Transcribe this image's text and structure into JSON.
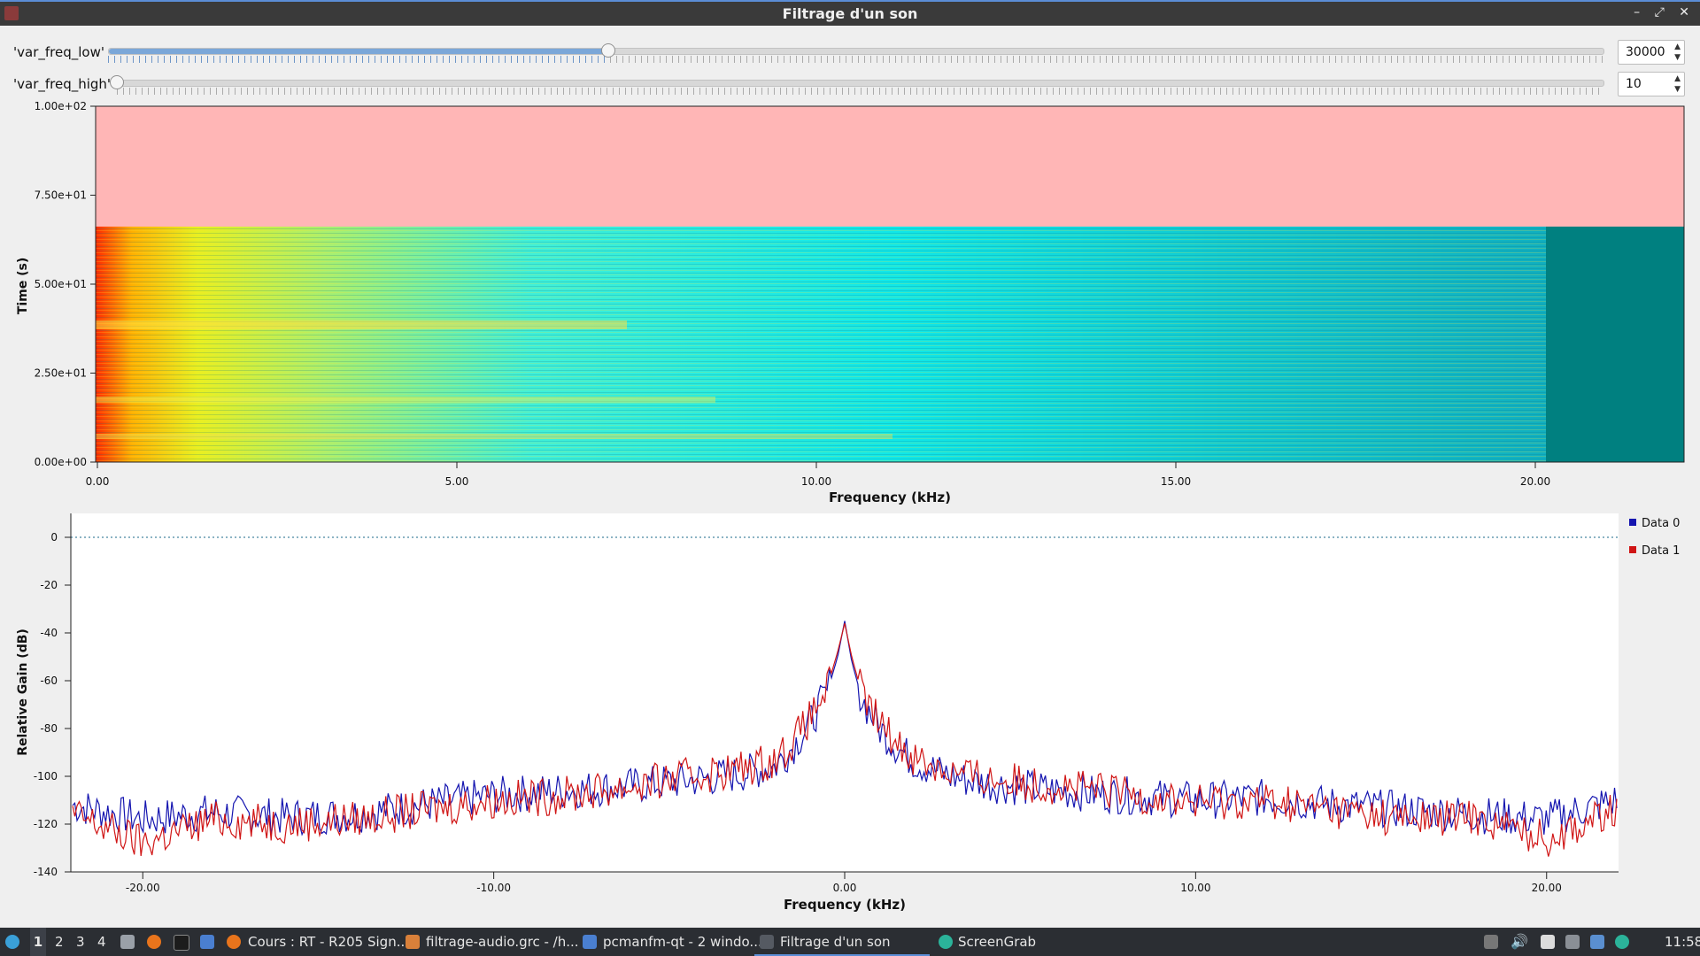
{
  "window": {
    "title": "Filtrage d'un son",
    "controls": [
      "–",
      "⤢",
      "✕"
    ]
  },
  "controls": {
    "low": {
      "label": "'var_freq_low'",
      "value": "30000",
      "fraction": 0.335
    },
    "high": {
      "label": "'var_freq_high'",
      "value": "10",
      "fraction": 0.0
    }
  },
  "colors": {
    "accent": "#5b8dd6",
    "series0": "#1515b0",
    "series1": "#d01515",
    "waterfall_empty": "#ffb6b6",
    "waterfall_floor": "#008080"
  },
  "waterfall": {
    "ylabel": "Time (s)",
    "xlabel": "Frequency (kHz)",
    "yticks": [
      "1.00e+02",
      "7.50e+01",
      "5.00e+01",
      "2.50e+01",
      "0.00e+00"
    ],
    "xticks": [
      "0.00",
      "5.00",
      "10.00",
      "15.00",
      "20.00"
    ]
  },
  "chart_data": {
    "type": "line",
    "xlabel": "Frequency (kHz)",
    "ylabel": "Relative Gain (dB)",
    "xlim": [
      -22.05,
      22.05
    ],
    "ylim": [
      -140,
      10
    ],
    "x_ticks": [
      "-20.00",
      "-10.00",
      "0.00",
      "10.00",
      "20.00"
    ],
    "y_ticks": [
      "0",
      "-20",
      "-40",
      "-60",
      "-80",
      "-100",
      "-120",
      "-140"
    ],
    "reference_line_db": 0,
    "legend_position": "right",
    "series": [
      {
        "name": "Data 0",
        "x": [
          -22,
          -20,
          -18,
          -16,
          -14,
          -12,
          -10,
          -8,
          -6,
          -4,
          -3,
          -2,
          -1.5,
          -1,
          -0.5,
          -0.2,
          0,
          0.2,
          0.5,
          1,
          1.5,
          2,
          3,
          4,
          6,
          8,
          10,
          12,
          14,
          16,
          18,
          20,
          22
        ],
        "y": [
          -112,
          -118,
          -115,
          -117,
          -116,
          -112,
          -108,
          -106,
          -104,
          -101,
          -99,
          -96,
          -88,
          -78,
          -65,
          -50,
          -35,
          -52,
          -68,
          -80,
          -88,
          -94,
          -100,
          -103,
          -106,
          -108,
          -110,
          -109,
          -112,
          -114,
          -116,
          -118,
          -110
        ]
      },
      {
        "name": "Data 1",
        "x": [
          -22,
          -20,
          -18,
          -16,
          -14,
          -12,
          -10,
          -8,
          -6,
          -4,
          -3,
          -2,
          -1.5,
          -1,
          -0.5,
          -0.2,
          0,
          0.2,
          0.5,
          1,
          1.5,
          2,
          3,
          4,
          6,
          8,
          10,
          12,
          14,
          16,
          18,
          20,
          22
        ],
        "y": [
          -116,
          -128,
          -118,
          -120,
          -118,
          -114,
          -110,
          -108,
          -104,
          -99,
          -97,
          -93,
          -86,
          -76,
          -63,
          -48,
          -36,
          -50,
          -66,
          -78,
          -86,
          -92,
          -98,
          -101,
          -104,
          -107,
          -111,
          -110,
          -114,
          -118,
          -117,
          -126,
          -114
        ]
      }
    ]
  },
  "taskbar": {
    "workspaces": [
      "1",
      "2",
      "3",
      "4"
    ],
    "tasks": [
      "Cours : RT - R205 Sign...",
      "filtrage-audio.grc - /h...",
      "pcmanfm-qt - 2 windo...",
      "Filtrage d'un son",
      "ScreenGrab"
    ],
    "clock": "11:58"
  }
}
